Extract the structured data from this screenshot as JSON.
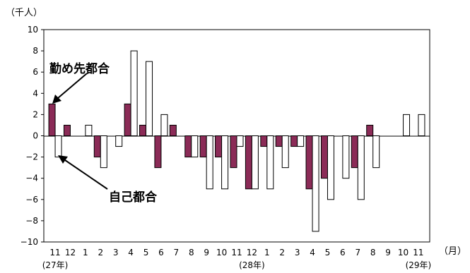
{
  "chart_data": {
    "type": "bar",
    "unit_label": "（千人）",
    "month_axis_label": "（月）",
    "categories": [
      "11",
      "12",
      "1",
      "2",
      "3",
      "4",
      "5",
      "6",
      "7",
      "8",
      "9",
      "10",
      "11",
      "12",
      "1",
      "2",
      "3",
      "4",
      "5",
      "6",
      "7",
      "8",
      "9",
      "10",
      "11"
    ],
    "year_labels": [
      {
        "text": "(27年)",
        "index": 0
      },
      {
        "text": "(28年)",
        "index": 13
      },
      {
        "text": "(29年)",
        "index": 24
      }
    ],
    "series": [
      {
        "name": "勤め先都合",
        "color": "#8b2b57",
        "values": [
          3,
          1,
          0,
          -2,
          0,
          3,
          1,
          -3,
          1,
          -2,
          -2,
          -2,
          -3,
          -5,
          -1,
          -1,
          -1,
          -5,
          -4,
          0,
          -3,
          1,
          0,
          0,
          0
        ]
      },
      {
        "name": "自己都合",
        "color": "#ffffff",
        "values": [
          -2,
          0,
          1,
          -3,
          -1,
          8,
          7,
          2,
          0,
          -2,
          -5,
          -5,
          -1,
          -5,
          -5,
          -3,
          -1,
          -9,
          -6,
          -4,
          -6,
          -3,
          0,
          2,
          2
        ]
      }
    ],
    "yticks": [
      10,
      8,
      6,
      4,
      2,
      0,
      -2,
      -4,
      -6,
      -8,
      -10
    ],
    "ylim": [
      -10,
      10
    ],
    "annotations": [
      {
        "text": "勤め先都合",
        "target_series": 0
      },
      {
        "text": "自己都合",
        "target_series": 1
      }
    ]
  }
}
